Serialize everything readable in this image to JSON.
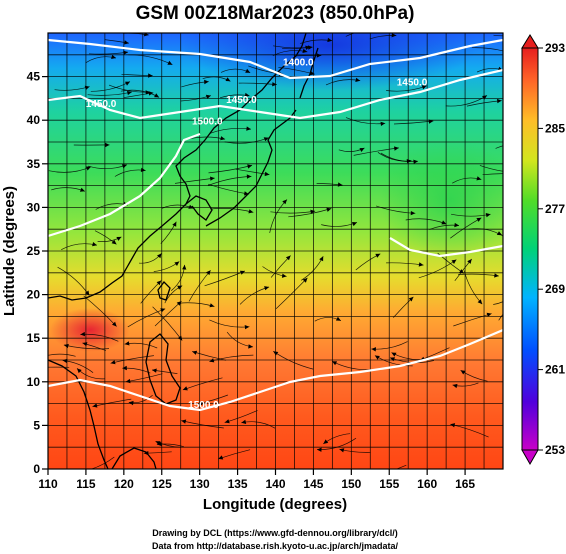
{
  "title": "GSM 00Z18Mar2023 (850.0hPa)",
  "xaxis": {
    "label": "Longitude (degrees)",
    "ticks": [
      110,
      115,
      120,
      125,
      130,
      135,
      140,
      145,
      150,
      155,
      160,
      165
    ],
    "range": [
      110,
      170
    ]
  },
  "yaxis": {
    "label": "Latitude (degrees)",
    "ticks": [
      0,
      5,
      10,
      15,
      20,
      25,
      30,
      35,
      40,
      45
    ],
    "range": [
      0,
      50
    ]
  },
  "colorbar": {
    "ticks": [
      253,
      261,
      269,
      277,
      285,
      293
    ],
    "range": [
      253,
      293
    ]
  },
  "contour_labels": [
    {
      "text": "1400.0",
      "lon": 143.0,
      "lat": 46.3
    },
    {
      "text": "1450.0",
      "lon": 135.5,
      "lat": 42.0
    },
    {
      "text": "1450.0",
      "lon": 117.0,
      "lat": 41.5
    },
    {
      "text": "1450.0",
      "lon": 158.0,
      "lat": 44.0
    },
    {
      "text": "1500.0",
      "lon": 131.0,
      "lat": 39.5
    },
    {
      "text": "1500.0",
      "lon": 130.5,
      "lat": 7.0
    }
  ],
  "credits": {
    "line1": "Drawing by DCL (https://www.gfd-dennou.org/library/dcl/)",
    "line2": "Data from http://database.rish.kyoto-u.ac.jp/arch/jmadata/"
  },
  "colors": {
    "cold": "#c800c8",
    "cool": "#0046ff",
    "mid": "#00c878",
    "warm": "#ffd200",
    "hot": "#ff3200"
  }
}
